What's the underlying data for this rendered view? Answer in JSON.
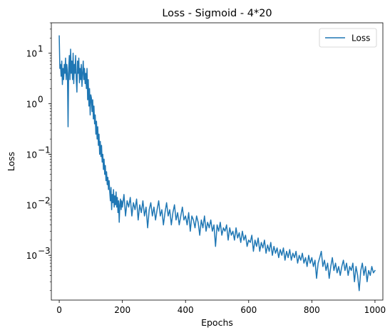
{
  "chart_data": {
    "type": "line",
    "title": "Loss - Sigmoid - 4*20",
    "xlabel": "Epochs",
    "ylabel": "Loss",
    "xlim": [
      -25,
      1025
    ],
    "ylim": [
      0.00013,
      40
    ],
    "yscale": "log",
    "grid": false,
    "legend_placement": "top-right",
    "x_ticks": [
      0,
      200,
      400,
      600,
      800,
      1000
    ],
    "x_tick_labels": [
      "0",
      "200",
      "400",
      "600",
      "800",
      "1000"
    ],
    "y_ticks": [
      0.001,
      0.01,
      0.1,
      1,
      10
    ],
    "y_tick_labels": [
      "10",
      "10",
      "10",
      "10",
      "10"
    ],
    "y_tick_exponents": [
      "−3",
      "−2",
      "−1",
      "0",
      "1"
    ],
    "series": [
      {
        "name": "Loss",
        "color": "#1f77b4",
        "points": [
          [
            0,
            22
          ],
          [
            2,
            5
          ],
          [
            4,
            6
          ],
          [
            6,
            3.5
          ],
          [
            8,
            7
          ],
          [
            10,
            2.4
          ],
          [
            12,
            5
          ],
          [
            14,
            3
          ],
          [
            16,
            6
          ],
          [
            18,
            4
          ],
          [
            20,
            8
          ],
          [
            22,
            3
          ],
          [
            24,
            6
          ],
          [
            26,
            4
          ],
          [
            28,
            0.35
          ],
          [
            30,
            5
          ],
          [
            32,
            9
          ],
          [
            34,
            3
          ],
          [
            36,
            12
          ],
          [
            38,
            4
          ],
          [
            40,
            7
          ],
          [
            42,
            3
          ],
          [
            44,
            10
          ],
          [
            46,
            2.5
          ],
          [
            48,
            6
          ],
          [
            50,
            4
          ],
          [
            52,
            9
          ],
          [
            54,
            3
          ],
          [
            56,
            1.7
          ],
          [
            58,
            7
          ],
          [
            60,
            4
          ],
          [
            62,
            8
          ],
          [
            64,
            2.6
          ],
          [
            66,
            5
          ],
          [
            68,
            3
          ],
          [
            70,
            6
          ],
          [
            72,
            2.2
          ],
          [
            74,
            4
          ],
          [
            76,
            7
          ],
          [
            78,
            3
          ],
          [
            80,
            5
          ],
          [
            82,
            2.5
          ],
          [
            84,
            4
          ],
          [
            86,
            2
          ],
          [
            88,
            5
          ],
          [
            90,
            1.2
          ],
          [
            92,
            3
          ],
          [
            94,
            0.9
          ],
          [
            96,
            2
          ],
          [
            98,
            0.6
          ],
          [
            100,
            1.5
          ],
          [
            102,
            1.3
          ],
          [
            104,
            0.7
          ],
          [
            106,
            1.2
          ],
          [
            108,
            0.5
          ],
          [
            110,
            0.9
          ],
          [
            112,
            0.4
          ],
          [
            114,
            0.6
          ],
          [
            116,
            0.25
          ],
          [
            118,
            0.45
          ],
          [
            120,
            0.2
          ],
          [
            122,
            0.35
          ],
          [
            124,
            0.15
          ],
          [
            126,
            0.25
          ],
          [
            128,
            0.1
          ],
          [
            130,
            0.18
          ],
          [
            132,
            0.09
          ],
          [
            134,
            0.15
          ],
          [
            136,
            0.07
          ],
          [
            138,
            0.1
          ],
          [
            140,
            0.05
          ],
          [
            142,
            0.08
          ],
          [
            144,
            0.04
          ],
          [
            146,
            0.06
          ],
          [
            148,
            0.03
          ],
          [
            150,
            0.045
          ],
          [
            152,
            0.025
          ],
          [
            154,
            0.035
          ],
          [
            156,
            0.02
          ],
          [
            158,
            0.03
          ],
          [
            160,
            0.018
          ],
          [
            162,
            0.012
          ],
          [
            164,
            0.022
          ],
          [
            166,
            0.008
          ],
          [
            168,
            0.016
          ],
          [
            170,
            0.011
          ],
          [
            172,
            0.02
          ],
          [
            174,
            0.009
          ],
          [
            176,
            0.015
          ],
          [
            178,
            0.01
          ],
          [
            180,
            0.018
          ],
          [
            182,
            0.009
          ],
          [
            184,
            0.014
          ],
          [
            186,
            0.007
          ],
          [
            188,
            0.012
          ],
          [
            190,
            0.0045
          ],
          [
            192,
            0.01
          ],
          [
            194,
            0.013
          ],
          [
            196,
            0.008
          ],
          [
            198,
            0.012
          ],
          [
            200,
            0.009
          ],
          [
            205,
            0.016
          ],
          [
            210,
            0.006
          ],
          [
            215,
            0.012
          ],
          [
            220,
            0.009
          ],
          [
            225,
            0.014
          ],
          [
            230,
            0.006
          ],
          [
            235,
            0.011
          ],
          [
            240,
            0.008
          ],
          [
            245,
            0.013
          ],
          [
            250,
            0.005
          ],
          [
            255,
            0.01
          ],
          [
            260,
            0.007
          ],
          [
            265,
            0.012
          ],
          [
            270,
            0.006
          ],
          [
            275,
            0.009
          ],
          [
            280,
            0.0035
          ],
          [
            285,
            0.008
          ],
          [
            290,
            0.011
          ],
          [
            295,
            0.006
          ],
          [
            300,
            0.009
          ],
          [
            305,
            0.005
          ],
          [
            310,
            0.008
          ],
          [
            315,
            0.012
          ],
          [
            320,
            0.006
          ],
          [
            325,
            0.008
          ],
          [
            330,
            0.004
          ],
          [
            335,
            0.007
          ],
          [
            340,
            0.011
          ],
          [
            345,
            0.006
          ],
          [
            350,
            0.008
          ],
          [
            355,
            0.004
          ],
          [
            360,
            0.007
          ],
          [
            365,
            0.01
          ],
          [
            370,
            0.005
          ],
          [
            375,
            0.007
          ],
          [
            380,
            0.004
          ],
          [
            385,
            0.006
          ],
          [
            390,
            0.009
          ],
          [
            395,
            0.005
          ],
          [
            400,
            0.006
          ],
          [
            405,
            0.004
          ],
          [
            410,
            0.007
          ],
          [
            415,
            0.003
          ],
          [
            420,
            0.006
          ],
          [
            425,
            0.005
          ],
          [
            430,
            0.0035
          ],
          [
            435,
            0.006
          ],
          [
            440,
            0.0045
          ],
          [
            445,
            0.0025
          ],
          [
            450,
            0.005
          ],
          [
            455,
            0.0035
          ],
          [
            460,
            0.006
          ],
          [
            465,
            0.003
          ],
          [
            470,
            0.0045
          ],
          [
            475,
            0.0035
          ],
          [
            480,
            0.005
          ],
          [
            485,
            0.003
          ],
          [
            490,
            0.004
          ],
          [
            495,
            0.0015
          ],
          [
            500,
            0.004
          ],
          [
            505,
            0.003
          ],
          [
            510,
            0.0045
          ],
          [
            515,
            0.0025
          ],
          [
            520,
            0.0035
          ],
          [
            525,
            0.003
          ],
          [
            530,
            0.004
          ],
          [
            535,
            0.002
          ],
          [
            540,
            0.0035
          ],
          [
            545,
            0.0025
          ],
          [
            550,
            0.003
          ],
          [
            555,
            0.002
          ],
          [
            560,
            0.0035
          ],
          [
            565,
            0.0022
          ],
          [
            570,
            0.0028
          ],
          [
            575,
            0.0018
          ],
          [
            580,
            0.003
          ],
          [
            585,
            0.002
          ],
          [
            590,
            0.0025
          ],
          [
            595,
            0.0015
          ],
          [
            600,
            0.002
          ],
          [
            605,
            0.0018
          ],
          [
            610,
            0.0025
          ],
          [
            615,
            0.0012
          ],
          [
            620,
            0.002
          ],
          [
            625,
            0.0015
          ],
          [
            630,
            0.0022
          ],
          [
            635,
            0.0012
          ],
          [
            640,
            0.0018
          ],
          [
            645,
            0.0014
          ],
          [
            650,
            0.002
          ],
          [
            655,
            0.0011
          ],
          [
            660,
            0.0016
          ],
          [
            665,
            0.0012
          ],
          [
            670,
            0.0018
          ],
          [
            675,
            0.001
          ],
          [
            680,
            0.0015
          ],
          [
            685,
            0.0011
          ],
          [
            690,
            0.0014
          ],
          [
            695,
            0.0009
          ],
          [
            700,
            0.0013
          ],
          [
            705,
            0.001
          ],
          [
            710,
            0.0014
          ],
          [
            715,
            0.0008
          ],
          [
            720,
            0.0012
          ],
          [
            725,
            0.0009
          ],
          [
            730,
            0.0013
          ],
          [
            735,
            0.0008
          ],
          [
            740,
            0.0011
          ],
          [
            745,
            0.0009
          ],
          [
            750,
            0.0012
          ],
          [
            755,
            0.0007
          ],
          [
            760,
            0.001
          ],
          [
            765,
            0.0008
          ],
          [
            770,
            0.0011
          ],
          [
            775,
            0.0007
          ],
          [
            780,
            0.0009
          ],
          [
            785,
            0.0006
          ],
          [
            790,
            0.001
          ],
          [
            795,
            0.0007
          ],
          [
            800,
            0.0009
          ],
          [
            805,
            0.0006
          ],
          [
            810,
            0.0008
          ],
          [
            815,
            0.00035
          ],
          [
            820,
            0.0007
          ],
          [
            825,
            0.0009
          ],
          [
            830,
            0.0012
          ],
          [
            835,
            0.0006
          ],
          [
            840,
            0.0008
          ],
          [
            845,
            0.0005
          ],
          [
            850,
            0.0007
          ],
          [
            855,
            0.00035
          ],
          [
            860,
            0.0006
          ],
          [
            865,
            0.0009
          ],
          [
            870,
            0.0005
          ],
          [
            875,
            0.0007
          ],
          [
            880,
            0.00045
          ],
          [
            885,
            0.0006
          ],
          [
            890,
            0.0004
          ],
          [
            895,
            0.0006
          ],
          [
            900,
            0.0008
          ],
          [
            905,
            0.0005
          ],
          [
            910,
            0.0007
          ],
          [
            915,
            0.0004
          ],
          [
            920,
            0.0006
          ],
          [
            925,
            0.0005
          ],
          [
            930,
            0.0007
          ],
          [
            935,
            0.0003
          ],
          [
            940,
            0.0006
          ],
          [
            945,
            0.0004
          ],
          [
            950,
            0.0002
          ],
          [
            955,
            0.0005
          ],
          [
            960,
            0.0007
          ],
          [
            965,
            0.0004
          ],
          [
            970,
            0.0006
          ],
          [
            975,
            0.0003
          ],
          [
            980,
            0.0005
          ],
          [
            985,
            0.0004
          ],
          [
            990,
            0.0006
          ],
          [
            995,
            0.00045
          ],
          [
            1000,
            0.0005
          ]
        ]
      }
    ]
  }
}
